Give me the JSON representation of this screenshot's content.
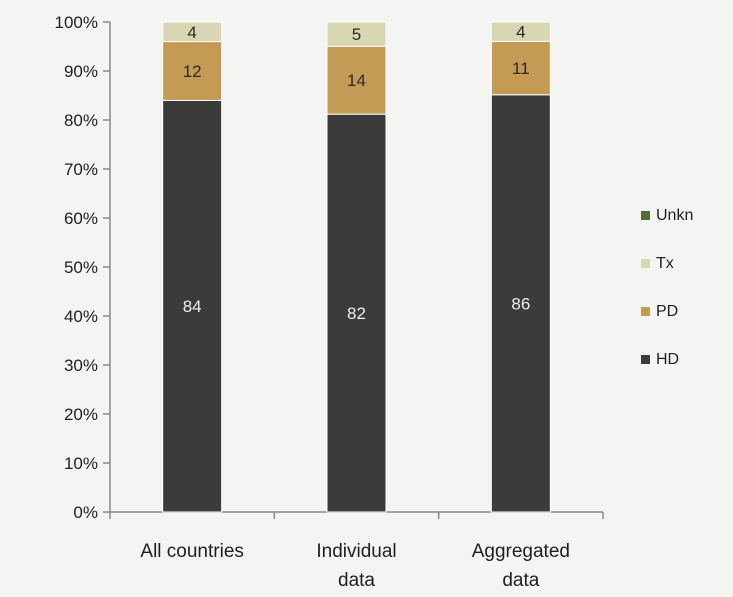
{
  "chart_data": {
    "type": "bar",
    "stacked": true,
    "percent": true,
    "categories": [
      [
        "All countries"
      ],
      [
        "Individual",
        "data"
      ],
      [
        "Aggregated",
        "data"
      ]
    ],
    "series": [
      {
        "name": "HD",
        "values": [
          84,
          82,
          86
        ],
        "color": "#3b3b3a",
        "label_color": "#eeeeee"
      },
      {
        "name": "PD",
        "values": [
          12,
          14,
          11
        ],
        "color": "#c49a55",
        "label_color": "#2b2b2b"
      },
      {
        "name": "Tx",
        "values": [
          4,
          5,
          4
        ],
        "color": "#d9d6b4",
        "label_color": "#2b2b2b"
      },
      {
        "name": "Unkn",
        "values": [
          0,
          0,
          0
        ],
        "color": "#556b3c",
        "label_color": "#2b2b2b"
      }
    ],
    "ylim": [
      0,
      100
    ],
    "yticks": [
      "0%",
      "10%",
      "20%",
      "30%",
      "40%",
      "50%",
      "60%",
      "70%",
      "80%",
      "90%",
      "100%"
    ],
    "legend": {
      "position": "right",
      "order": [
        "Unkn",
        "Tx",
        "PD",
        "HD"
      ]
    },
    "grid": false
  }
}
